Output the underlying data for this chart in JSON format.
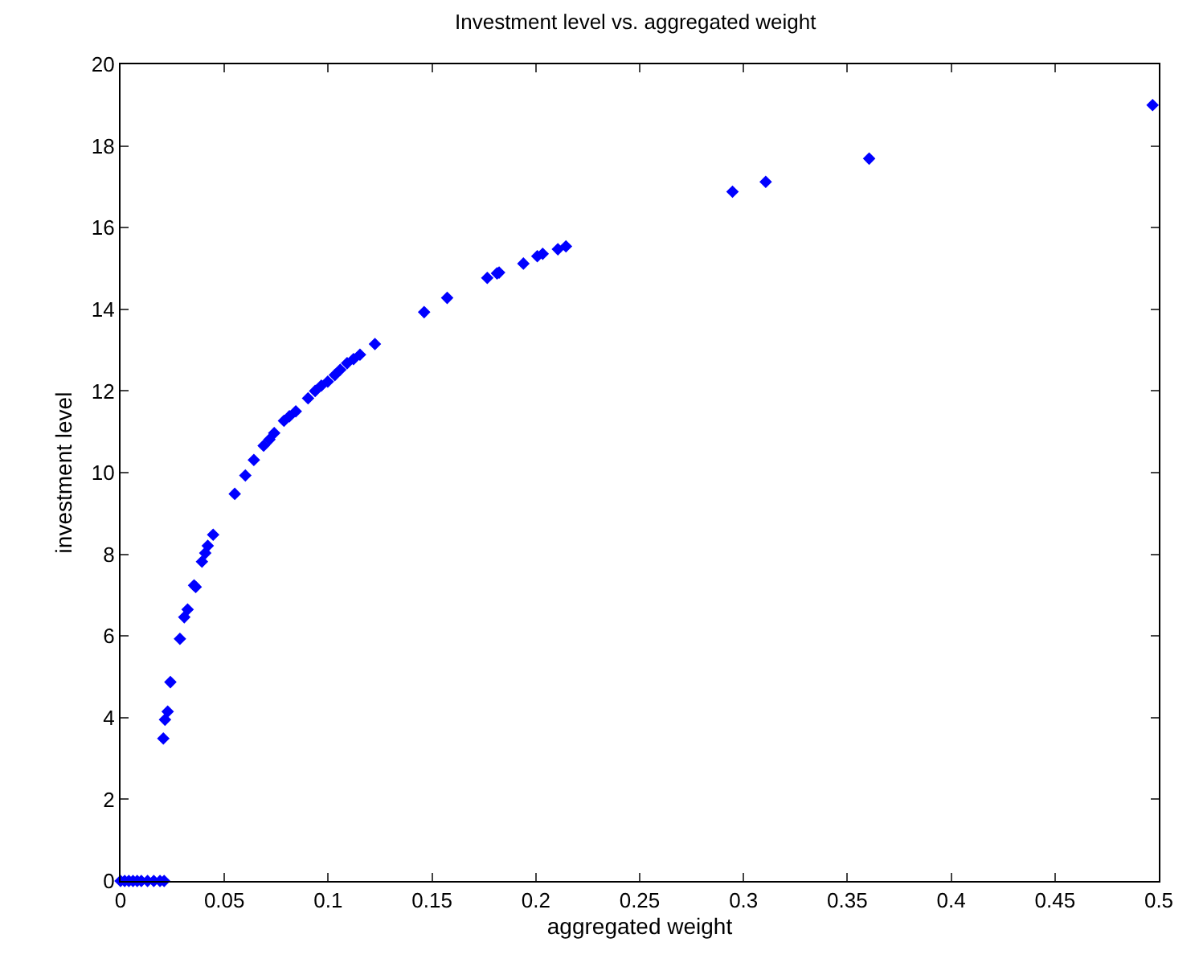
{
  "chart_data": {
    "type": "scatter",
    "title": "Investment level vs. aggregated weight",
    "xlabel": "aggregated weight",
    "ylabel": "investment level",
    "marker": "diamond",
    "xlim": [
      0,
      0.5
    ],
    "xticks": [
      {
        "value": 0,
        "label": "0"
      },
      0.05,
      0.1,
      0.15,
      0.2,
      0.25,
      0.3,
      0.35,
      0.4,
      0.45,
      0.5
    ],
    "ylim": [
      0,
      20
    ],
    "yticks": [
      0,
      2,
      4,
      6,
      8,
      10,
      12,
      14,
      16,
      18,
      20
    ],
    "x": [
      0,
      0.002,
      0.004,
      0.006,
      0.008,
      0.01,
      0.013,
      0.016,
      0.019,
      0.021,
      0.0206,
      0.0214,
      0.0227,
      0.024,
      0.0286,
      0.0307,
      0.0323,
      0.0354,
      0.0362,
      0.0392,
      0.0408,
      0.042,
      0.0446,
      0.055,
      0.0601,
      0.0642,
      0.0689,
      0.0717,
      0.074,
      0.0787,
      0.0813,
      0.0844,
      0.0903,
      0.0937,
      0.0967,
      0.0998,
      0.1032,
      0.1058,
      0.1091,
      0.1122,
      0.1153,
      0.1225,
      0.1462,
      0.1573,
      0.1766,
      0.1813,
      0.1823,
      0.194,
      0.2007,
      0.2033,
      0.2106,
      0.2145,
      0.2947,
      0.3107,
      0.3605,
      0.497
    ],
    "series": [
      {
        "color": "#0000ff",
        "values": [
          0,
          0,
          0,
          0,
          0,
          0,
          0,
          0,
          0,
          0,
          3.49,
          3.95,
          4.15,
          4.87,
          5.93,
          6.46,
          6.65,
          7.24,
          7.2,
          7.82,
          8.03,
          8.21,
          8.48,
          9.48,
          9.93,
          10.31,
          10.66,
          10.81,
          10.97,
          11.27,
          11.38,
          11.5,
          11.82,
          12.0,
          12.13,
          12.23,
          12.39,
          12.52,
          12.68,
          12.78,
          12.89,
          13.15,
          13.93,
          14.28,
          14.77,
          14.88,
          14.9,
          15.12,
          15.3,
          15.36,
          15.47,
          15.54,
          16.88,
          17.12,
          17.69,
          19.0
        ]
      }
    ]
  }
}
